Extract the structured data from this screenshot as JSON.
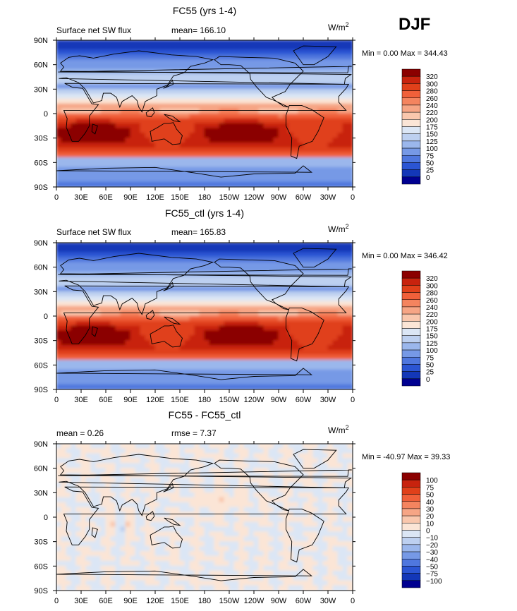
{
  "season_label": "DJF",
  "chart_data": [
    {
      "type": "heatmap",
      "title": "FC55 (yrs 1-4)",
      "left_label": "Surface net SW flux",
      "stat_text": "mean= 166.10",
      "units": "W/m",
      "units_exp": "2",
      "minmax_text": "Min =    0.00 Max = 344.43",
      "mean": 166.1,
      "min": 0.0,
      "max": 344.43,
      "x_ticks": [
        "0",
        "30E",
        "60E",
        "90E",
        "120E",
        "150E",
        "180",
        "150W",
        "120W",
        "90W",
        "60W",
        "30W",
        "0"
      ],
      "y_ticks": [
        "90N",
        "60N",
        "30N",
        "0",
        "30S",
        "60S",
        "90S"
      ],
      "colorbar_levels": [
        "320",
        "300",
        "280",
        "260",
        "240",
        "220",
        "200",
        "175",
        "150",
        "125",
        "100",
        "75",
        "50",
        "25",
        "0"
      ],
      "colorbar_colors": [
        "#8b0000",
        "#c8230e",
        "#e0401a",
        "#f0603a",
        "#f4845f",
        "#f6a585",
        "#f9c7ad",
        "#fbe5d6",
        "#dbe6f5",
        "#bdd0f0",
        "#9bb7ec",
        "#7699e6",
        "#4f77de",
        "#2b55d3",
        "#1337b8",
        "#000090"
      ]
    },
    {
      "type": "heatmap",
      "title": "FC55_ctl (yrs 1-4)",
      "left_label": "Surface net SW flux",
      "stat_text": "mean= 165.83",
      "units": "W/m",
      "units_exp": "2",
      "minmax_text": "Min =    0.00 Max = 346.42",
      "mean": 165.83,
      "min": 0.0,
      "max": 346.42,
      "x_ticks": [
        "0",
        "30E",
        "60E",
        "90E",
        "120E",
        "150E",
        "180",
        "150W",
        "120W",
        "90W",
        "60W",
        "30W",
        "0"
      ],
      "y_ticks": [
        "90N",
        "60N",
        "30N",
        "0",
        "30S",
        "60S",
        "90S"
      ],
      "colorbar_levels": [
        "320",
        "300",
        "280",
        "260",
        "240",
        "220",
        "200",
        "175",
        "150",
        "125",
        "100",
        "75",
        "50",
        "25",
        "0"
      ],
      "colorbar_colors": [
        "#8b0000",
        "#c8230e",
        "#e0401a",
        "#f0603a",
        "#f4845f",
        "#f6a585",
        "#f9c7ad",
        "#fbe5d6",
        "#dbe6f5",
        "#bdd0f0",
        "#9bb7ec",
        "#7699e6",
        "#4f77de",
        "#2b55d3",
        "#1337b8",
        "#000090"
      ]
    },
    {
      "type": "heatmap",
      "title": "FC55 - FC55_ctl",
      "left_label": "mean =    0.26",
      "stat_text": "rmse =    7.37",
      "units": "W/m",
      "units_exp": "2",
      "minmax_text": "Min = -40.97 Max =  39.33",
      "mean": 0.26,
      "rmse": 7.37,
      "min": -40.97,
      "max": 39.33,
      "x_ticks": [
        "0",
        "30E",
        "60E",
        "90E",
        "120E",
        "150E",
        "180",
        "150W",
        "120W",
        "90W",
        "60W",
        "30W",
        "0"
      ],
      "y_ticks": [
        "90N",
        "60N",
        "30N",
        "0",
        "30S",
        "60S",
        "90S"
      ],
      "colorbar_levels": [
        "100",
        "75",
        "50",
        "40",
        "30",
        "20",
        "10",
        "0",
        "−10",
        "−20",
        "−30",
        "−40",
        "−50",
        "−75",
        "−100"
      ],
      "colorbar_colors": [
        "#8b0000",
        "#c8230e",
        "#e0401a",
        "#f0603a",
        "#f4845f",
        "#f6a585",
        "#f9c7ad",
        "#fbe5d6",
        "#dbe6f5",
        "#bdd0f0",
        "#9bb7ec",
        "#7699e6",
        "#4f77de",
        "#2b55d3",
        "#1337b8",
        "#000090"
      ]
    }
  ]
}
